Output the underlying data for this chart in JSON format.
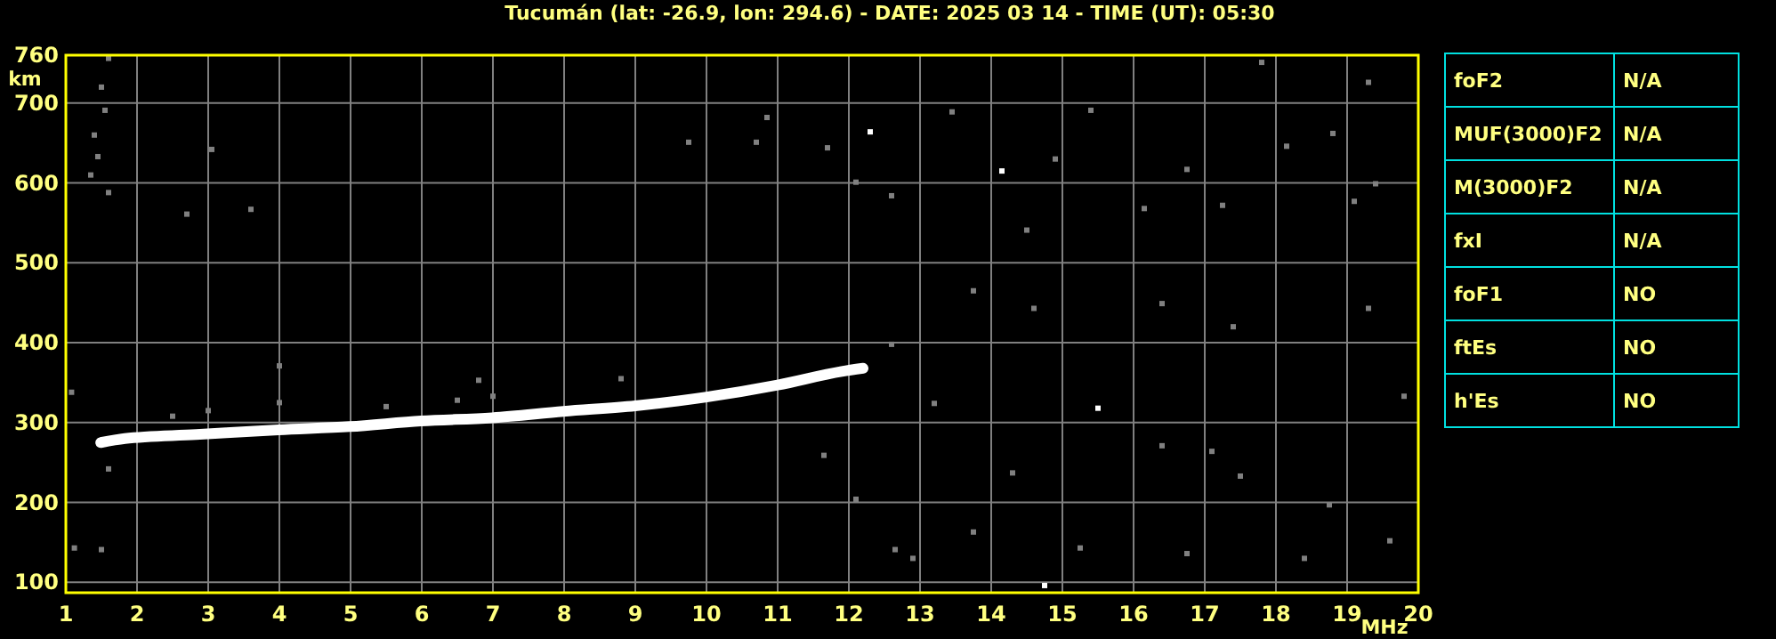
{
  "chart_data": [
    {
      "type": "scatter",
      "title": "Tucumán (lat: -26.9, lon: 294.6) - DATE: 2025 03 14 - TIME (UT): 05:30",
      "xlabel": "MHz",
      "ylabel": "km",
      "xlim": [
        1,
        20
      ],
      "ylim": [
        87,
        760
      ],
      "xticks": [
        1,
        2,
        3,
        4,
        5,
        6,
        7,
        8,
        9,
        10,
        11,
        12,
        13,
        14,
        15,
        16,
        17,
        18,
        19,
        20
      ],
      "yticks": [
        100,
        200,
        300,
        400,
        500,
        600,
        700,
        760
      ],
      "grid": true,
      "series": [
        {
          "type": "scatter",
          "marker": "square",
          "color": "#808080",
          "x": [
            1.6,
            1.5,
            1.55,
            1.4,
            1.45,
            1.35,
            1.6,
            3.05,
            9.75,
            10.7,
            10.85,
            11.7,
            12.1,
            13.45,
            14.9,
            16.75,
            18.15,
            18.8,
            19.4,
            19.1,
            17.25,
            16.15,
            14.5,
            12.6,
            17.8,
            19.3,
            15.4,
            14.3,
            13.2,
            16.4,
            17.1,
            18.4,
            19.6,
            18.75,
            17.5,
            16.75,
            15.25,
            13.75,
            12.9,
            19.8,
            19.3,
            17.4,
            16.4,
            14.6,
            13.75,
            12.6,
            1.12,
            1.5,
            1.6,
            11.65,
            12.1,
            12.65,
            4.0,
            6.8,
            8.8,
            1.08,
            2.7,
            3.6,
            3.0,
            4.0,
            5.5,
            6.5,
            7.0,
            2.5
          ],
          "values": [
            756,
            720,
            691,
            660,
            633,
            610,
            588,
            642,
            651,
            651,
            682,
            644,
            601,
            689,
            630,
            617,
            646,
            662,
            599,
            577,
            572,
            568,
            541,
            584,
            751,
            726,
            691,
            237,
            324,
            271,
            264,
            130,
            152,
            197,
            233,
            136,
            143,
            163,
            130,
            333,
            443,
            420,
            449,
            443,
            465,
            398,
            143,
            141,
            242,
            259,
            204,
            141,
            371,
            353,
            355,
            338,
            561,
            567,
            315,
            325,
            320,
            328,
            333,
            308
          ]
        },
        {
          "type": "scatter",
          "marker": "square",
          "color": "#ffffff",
          "x": [
            12.3,
            14.15,
            15.5,
            14.75
          ],
          "values": [
            664,
            615,
            318,
            96
          ]
        },
        {
          "type": "line",
          "marker": "none",
          "line_style": "solid",
          "color": "#ffffff",
          "x": [
            1.49,
            1.83,
            2.83,
            3.99,
            4.99,
            5.99,
            6.99,
            7.99,
            9.0,
            10.0,
            11.0,
            11.9,
            12.2
          ],
          "values": [
            275,
            280,
            285,
            291,
            295,
            302,
            306,
            314,
            321,
            332,
            347,
            364,
            368
          ]
        }
      ]
    },
    {
      "type": "other",
      "annotations": [
        "foF2",
        "N/A",
        "MUF(3000)F2",
        "N/A",
        "M(3000)F2",
        "N/A",
        "fxI",
        "N/A",
        "foF1",
        "NO",
        "ftEs",
        "NO",
        "h'Es",
        "NO"
      ]
    }
  ]
}
